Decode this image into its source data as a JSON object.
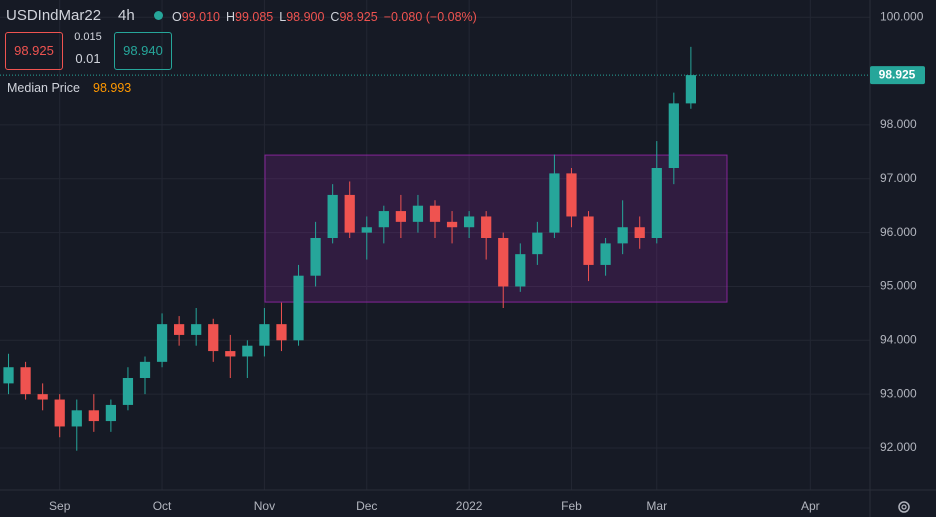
{
  "header": {
    "symbol": "USDIndMar22",
    "interval": "4h",
    "ohlc": [
      {
        "key": "O",
        "value": "99.010"
      },
      {
        "key": "H",
        "value": "99.085"
      },
      {
        "key": "L",
        "value": "98.900"
      },
      {
        "key": "C",
        "value": "98.925"
      }
    ],
    "change": "−0.080 (−0.08%)",
    "sell": "98.925",
    "spread": "0.015",
    "quantity": "0.01",
    "buy": "98.940",
    "indicator": {
      "name": "Median Price",
      "value": "98.993"
    }
  },
  "chart_data": {
    "type": "candlestick",
    "categories": [
      null,
      null,
      null,
      "Sep",
      null,
      null,
      null,
      null,
      null,
      "Oct",
      null,
      null,
      null,
      null,
      null,
      "Nov",
      null,
      null,
      null,
      null,
      null,
      "Dec",
      null,
      null,
      null,
      null,
      null,
      "2022",
      null,
      null,
      null,
      null,
      null,
      "Feb",
      null,
      null,
      null,
      null,
      "Mar",
      null,
      null,
      null,
      null,
      null,
      null,
      null,
      null,
      "Apr",
      null,
      null,
      null
    ],
    "open": [
      93.2,
      93.5,
      93.0,
      92.9,
      92.4,
      92.7,
      92.5,
      92.8,
      93.3,
      93.6,
      94.3,
      94.1,
      94.3,
      93.8,
      93.7,
      93.9,
      94.3,
      94.0,
      95.2,
      95.9,
      96.7,
      96.0,
      96.1,
      96.4,
      96.2,
      96.5,
      96.2,
      96.1,
      96.3,
      95.9,
      95.0,
      95.6,
      96.0,
      97.1,
      96.3,
      95.4,
      95.8,
      96.1,
      95.9,
      97.2,
      98.4,
      null,
      null,
      null,
      null,
      null,
      null,
      null,
      null,
      null,
      null
    ],
    "high": [
      93.75,
      93.6,
      93.2,
      93.0,
      92.9,
      93.0,
      92.9,
      93.5,
      93.7,
      94.5,
      94.45,
      94.6,
      94.4,
      94.1,
      94.0,
      94.6,
      94.7,
      95.4,
      96.2,
      96.9,
      96.95,
      96.3,
      96.5,
      96.7,
      96.7,
      96.6,
      96.4,
      96.4,
      96.4,
      96.0,
      95.8,
      96.2,
      97.45,
      97.2,
      96.4,
      95.9,
      96.6,
      96.3,
      97.7,
      98.6,
      99.45,
      null,
      null,
      null,
      null,
      null,
      null,
      null,
      null,
      null,
      null
    ],
    "low": [
      93.0,
      92.9,
      92.7,
      92.2,
      91.95,
      92.3,
      92.3,
      92.7,
      93.0,
      93.5,
      93.9,
      93.9,
      93.6,
      93.3,
      93.3,
      93.7,
      93.8,
      93.9,
      95.0,
      95.8,
      95.9,
      95.5,
      95.8,
      95.9,
      96.0,
      95.9,
      95.8,
      95.9,
      95.5,
      94.6,
      94.9,
      95.4,
      95.9,
      96.1,
      95.1,
      95.2,
      95.6,
      95.7,
      95.8,
      96.9,
      98.3,
      null,
      null,
      null,
      null,
      null,
      null,
      null,
      null,
      null,
      null
    ],
    "close": [
      93.5,
      93.0,
      92.9,
      92.4,
      92.7,
      92.5,
      92.8,
      93.3,
      93.6,
      94.3,
      94.1,
      94.3,
      93.8,
      93.7,
      93.9,
      94.3,
      94.0,
      95.2,
      95.9,
      96.7,
      96.0,
      96.1,
      96.4,
      96.2,
      96.5,
      96.2,
      96.1,
      96.3,
      95.9,
      95.0,
      95.6,
      96.0,
      97.1,
      96.3,
      95.4,
      95.8,
      96.1,
      95.9,
      97.2,
      98.4,
      98.925,
      null,
      null,
      null,
      null,
      null,
      null,
      null,
      null,
      null,
      null
    ],
    "up_color": "#26a69a",
    "down_color": "#ef5350",
    "zone": {
      "high": 97.44,
      "low": 94.71,
      "color": "#9c27b0"
    },
    "ylim": [
      91.22,
      100.32
    ],
    "yticks": [
      {
        "value": 92,
        "label": "92.000"
      },
      {
        "value": 93,
        "label": "93.000"
      },
      {
        "value": 94,
        "label": "94.000"
      },
      {
        "value": 95,
        "label": "95.000"
      },
      {
        "value": 96,
        "label": "96.000"
      },
      {
        "value": 97,
        "label": "97.000"
      },
      {
        "value": 98,
        "label": "98.000"
      },
      {
        "value": 100,
        "label": "100.000"
      }
    ],
    "grid": true
  }
}
